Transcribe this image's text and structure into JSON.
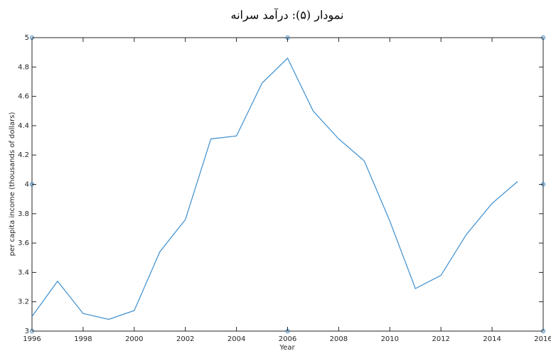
{
  "chart_data": {
    "type": "line",
    "title": "نمودار (۵): درآمد سرانه",
    "x_label": "Year",
    "y_label": "per capita income (thousands of dollars)",
    "x": [
      1996,
      1997,
      1998,
      1999,
      2000,
      2001,
      2002,
      2003,
      2004,
      2005,
      2006,
      2007,
      2008,
      2009,
      2010,
      2011,
      2012,
      2013,
      2014,
      2015
    ],
    "series": [
      {
        "name": "per capita income",
        "color": "#3d8fcf",
        "values": [
          3.1,
          3.34,
          3.12,
          3.08,
          3.14,
          3.54,
          3.76,
          4.31,
          4.33,
          4.69,
          4.86,
          4.5,
          4.31,
          4.16,
          3.75,
          3.29,
          3.38,
          3.66,
          3.87,
          4.02
        ]
      }
    ],
    "xlim": [
      1996,
      2016
    ],
    "xticks": [
      1996,
      1998,
      2000,
      2002,
      2004,
      2006,
      2008,
      2010,
      2012,
      2014,
      2016
    ],
    "ylim": [
      3,
      5
    ],
    "yticks": [
      3,
      3.2,
      3.4,
      3.6,
      3.8,
      4,
      4.2,
      4.4,
      4.6,
      4.8,
      5
    ]
  }
}
